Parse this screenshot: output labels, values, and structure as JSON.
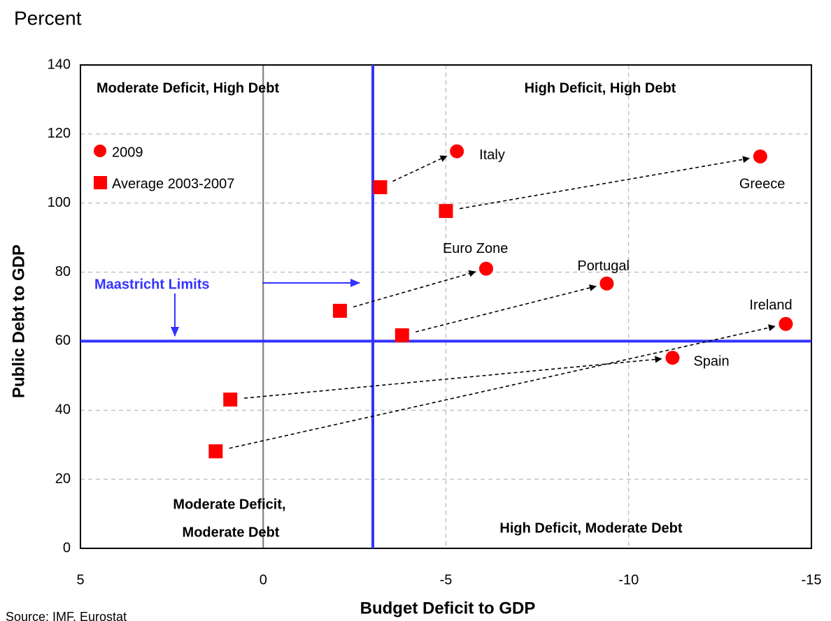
{
  "chart_data": {
    "type": "scatter",
    "title": "Percent",
    "x_label": "Budget Deficit to GDP",
    "y_label": "Public Debt to GDP",
    "source": "Source: IMF, Eurostat",
    "xlim": [
      5,
      -15
    ],
    "xticks": [
      5,
      0,
      -5,
      -10,
      -15
    ],
    "ylim": [
      0,
      140
    ],
    "yticks": [
      0,
      20,
      40,
      60,
      80,
      100,
      120,
      140
    ],
    "grid": true,
    "legend": "upper left",
    "point_labels": [
      "Italy",
      "Greece",
      "Euro Zone",
      "Portugal",
      "Ireland",
      "Spain"
    ],
    "series": [
      {
        "name": "2009",
        "color": "#ff0000",
        "marker": "circle",
        "x": [
          -5.3,
          -13.6,
          -6.1,
          -9.4,
          -14.3,
          -11.2
        ],
        "y": [
          115,
          113.5,
          81,
          76.7,
          65,
          55.2
        ]
      },
      {
        "name": "Average 2003-2007",
        "color": "#ff0000",
        "marker": "square",
        "x": [
          -3.2,
          -5.0,
          -2.1,
          -3.8,
          1.3,
          0.9
        ],
        "y": [
          104.6,
          97.7,
          68.8,
          61.7,
          28.1,
          43.1
        ]
      }
    ],
    "limits": {
      "label": "Maastricht Limits",
      "x": -3,
      "y": 60,
      "color": "#3333ff"
    },
    "quadrant_labels": [
      "Moderate Deficit,  High Debt",
      "High Deficit,  High Debt",
      "Moderate Deficit,",
      "Moderate Debt",
      "High Deficit,  Moderate Debt"
    ]
  }
}
